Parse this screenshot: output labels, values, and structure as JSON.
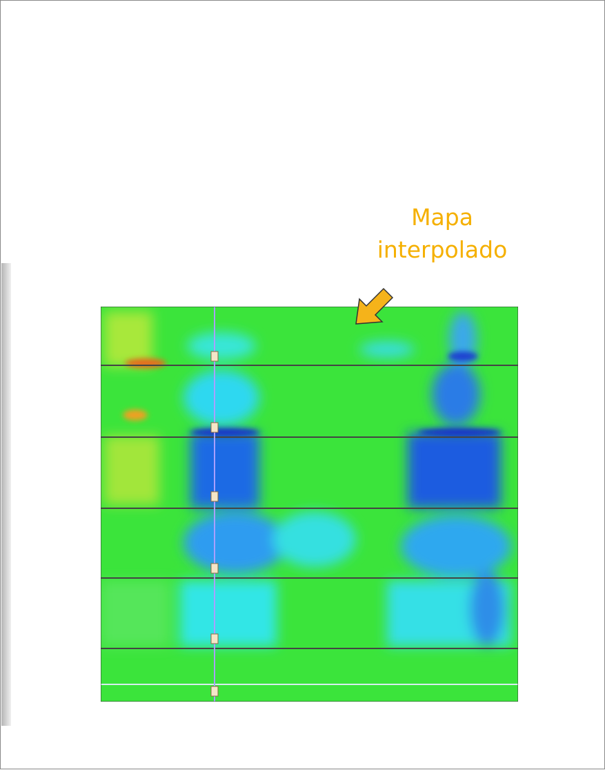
{
  "annotation": {
    "text": "Mapa interpolado"
  }
}
